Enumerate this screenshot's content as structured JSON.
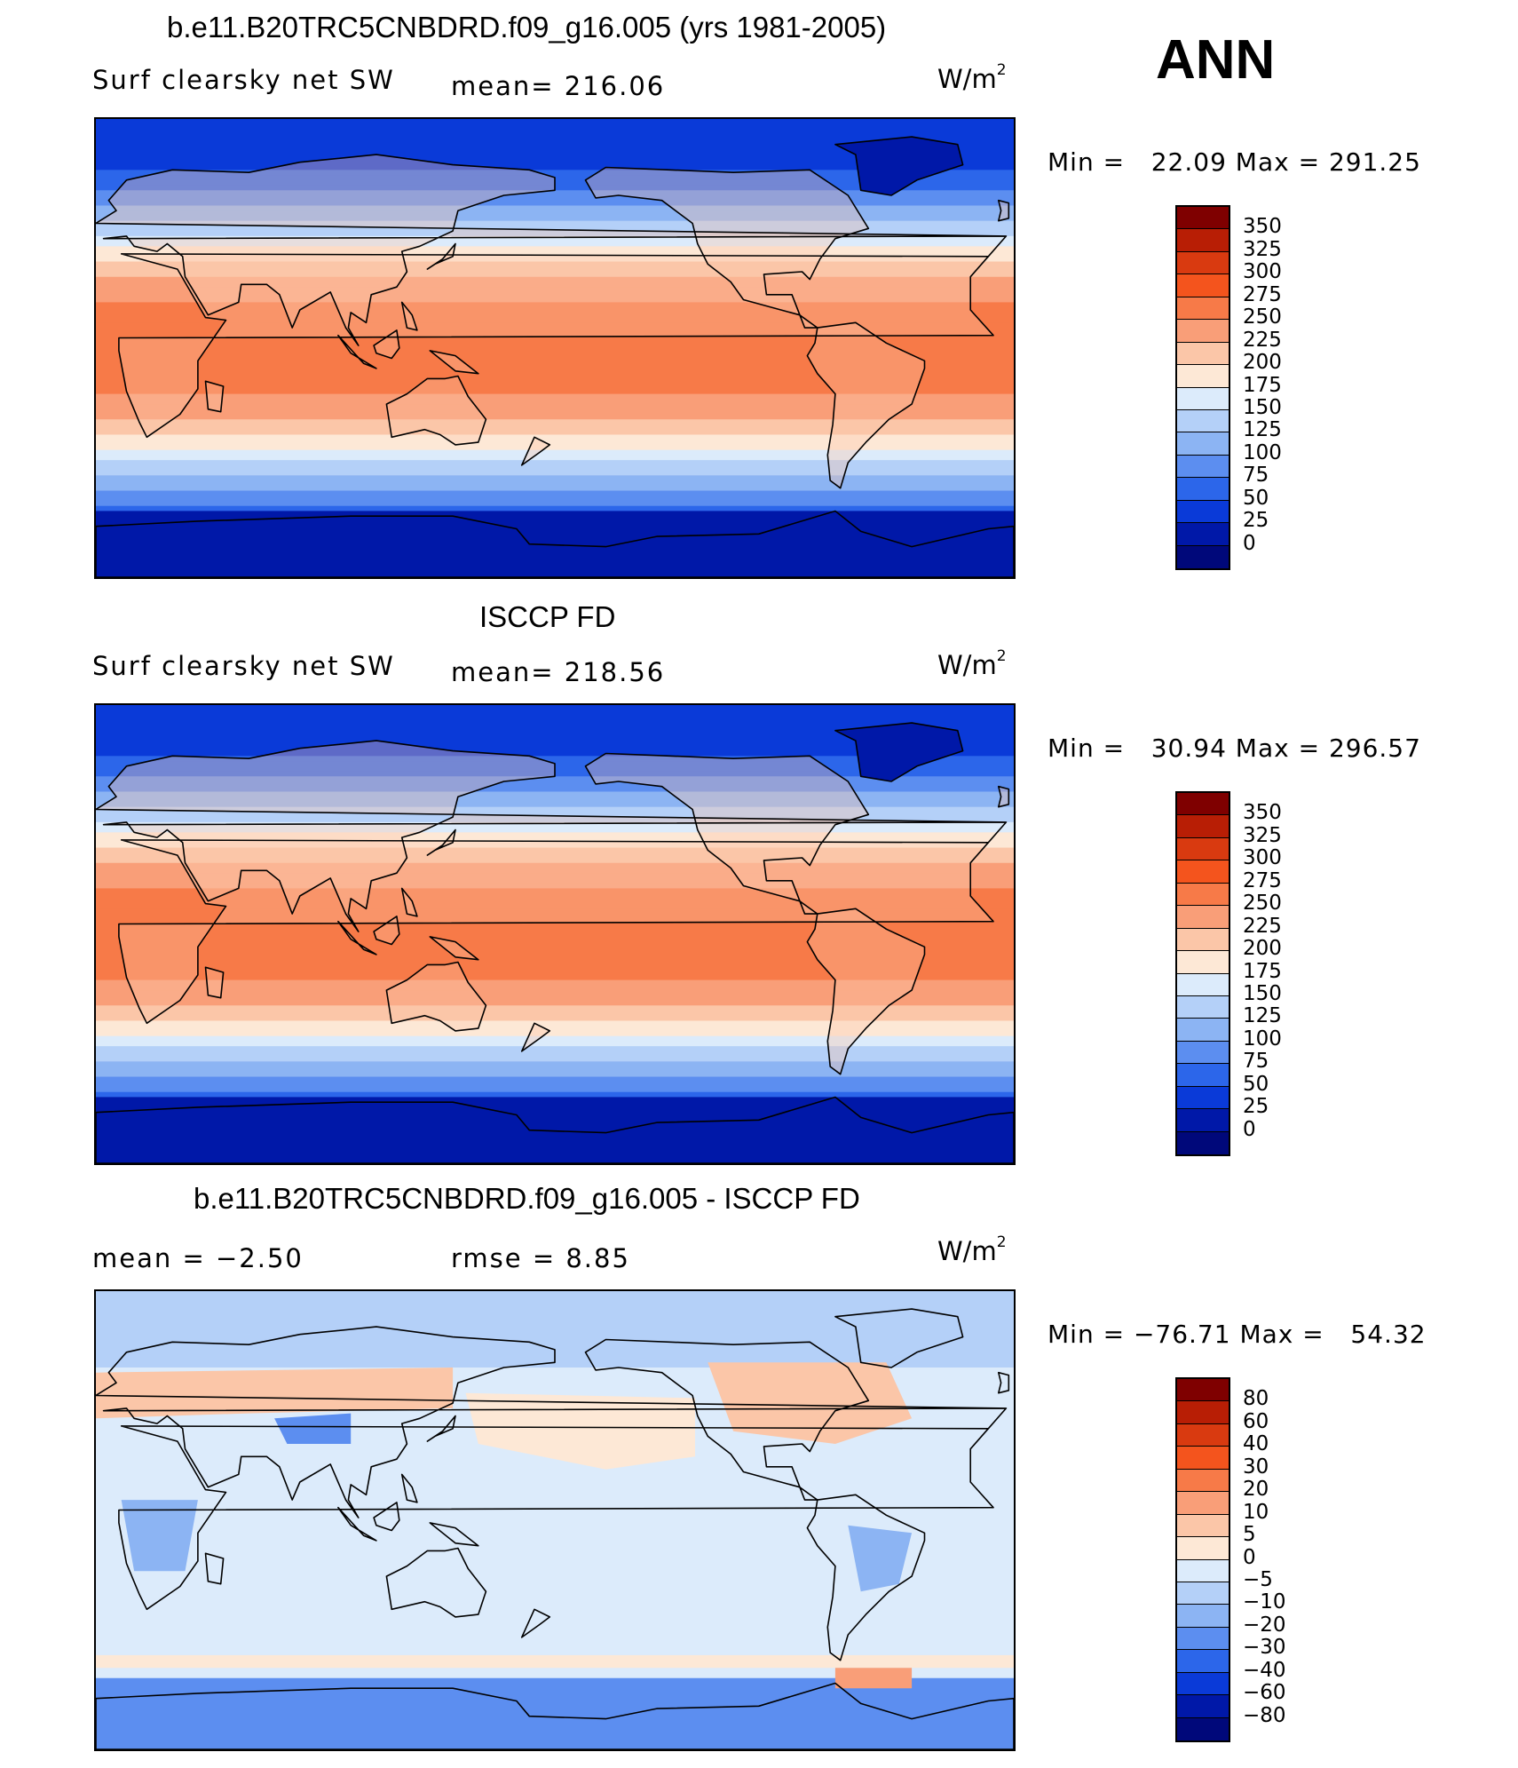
{
  "season": "ANN",
  "panels": [
    {
      "title": "b.e11.B20TRC5CNBDRD.f09_g16.005 (yrs 1981-2005)",
      "left_label": "Surf clearsky net SW",
      "center_label": "mean= 216.06",
      "units_base": "W/m",
      "units_exp": "2",
      "minmax": "Min =   22.09 Max = 291.25",
      "field_type": "abs",
      "colorbar": {
        "labels": [
          "350",
          "325",
          "300",
          "275",
          "250",
          "225",
          "200",
          "175",
          "150",
          "125",
          "100",
          "75",
          "50",
          "25",
          "0"
        ],
        "colors": [
          "#7f0000",
          "#b81e05",
          "#d93a10",
          "#f4541d",
          "#f77a48",
          "#f99e78",
          "#fbc6a8",
          "#fde8d6",
          "#dcebfb",
          "#b4d0f8",
          "#8cb4f3",
          "#5c8ef0",
          "#2c66ea",
          "#0a3ad8",
          "#0018a8",
          "#00087a"
        ]
      }
    },
    {
      "title": "ISCCP FD",
      "left_label": "Surf clearsky net SW",
      "center_label": "mean= 218.56",
      "units_base": "W/m",
      "units_exp": "2",
      "minmax": "Min =   30.94 Max = 296.57",
      "field_type": "abs",
      "colorbar": {
        "labels": [
          "350",
          "325",
          "300",
          "275",
          "250",
          "225",
          "200",
          "175",
          "150",
          "125",
          "100",
          "75",
          "50",
          "25",
          "0"
        ],
        "colors": [
          "#7f0000",
          "#b81e05",
          "#d93a10",
          "#f4541d",
          "#f77a48",
          "#f99e78",
          "#fbc6a8",
          "#fde8d6",
          "#dcebfb",
          "#b4d0f8",
          "#8cb4f3",
          "#5c8ef0",
          "#2c66ea",
          "#0a3ad8",
          "#0018a8",
          "#00087a"
        ]
      }
    },
    {
      "title": "b.e11.B20TRC5CNBDRD.f09_g16.005 - ISCCP FD",
      "left_label": "mean =    −2.50",
      "center_label": "rmse =     8.85",
      "units_base": "W/m",
      "units_exp": "2",
      "minmax": "Min = −76.71 Max =   54.32",
      "field_type": "diff",
      "colorbar": {
        "labels": [
          "80",
          "60",
          "40",
          "30",
          "20",
          "10",
          "5",
          "0",
          "−5",
          "−10",
          "−20",
          "−30",
          "−40",
          "−60",
          "−80"
        ],
        "colors": [
          "#7f0000",
          "#b81e05",
          "#d93a10",
          "#f4541d",
          "#f77a48",
          "#f99e78",
          "#fbc6a8",
          "#fde8d6",
          "#dcebfb",
          "#b4d0f8",
          "#8cb4f3",
          "#5c8ef0",
          "#2c66ea",
          "#0a3ad8",
          "#0018a8",
          "#00087a"
        ]
      }
    }
  ]
}
